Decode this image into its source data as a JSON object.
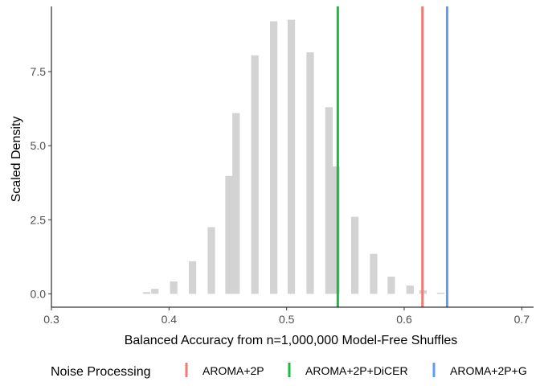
{
  "chart_data": {
    "type": "bar",
    "title": "",
    "xlabel": "Balanced Accuracy from n=1,000,000 Model-Free Shuffles",
    "ylabel": "Scaled Density",
    "xlim": [
      0.3,
      0.71
    ],
    "ylim": [
      -0.45,
      9.7
    ],
    "x_ticks": [
      {
        "value": 0.3,
        "label": "0.3"
      },
      {
        "value": 0.4,
        "label": "0.4"
      },
      {
        "value": 0.5,
        "label": "0.5"
      },
      {
        "value": 0.6,
        "label": "0.6"
      },
      {
        "value": 0.7,
        "label": "0.7"
      }
    ],
    "y_ticks": [
      {
        "value": 0.0,
        "label": "0.0"
      },
      {
        "value": 2.5,
        "label": "2.5"
      },
      {
        "value": 5.0,
        "label": "5.0"
      },
      {
        "value": 7.5,
        "label": "7.5"
      }
    ],
    "bar_color": "#d3d3d3",
    "bar_width": 0.0063,
    "histogram": [
      {
        "x": 0.381,
        "value": 0.06
      },
      {
        "x": 0.388,
        "value": 0.17
      },
      {
        "x": 0.404,
        "value": 0.42
      },
      {
        "x": 0.42,
        "value": 1.1
      },
      {
        "x": 0.436,
        "value": 2.25
      },
      {
        "x": 0.451,
        "value": 3.98
      },
      {
        "x": 0.457,
        "value": 6.1
      },
      {
        "x": 0.473,
        "value": 8.05
      },
      {
        "x": 0.489,
        "value": 9.2
      },
      {
        "x": 0.504,
        "value": 9.25
      },
      {
        "x": 0.52,
        "value": 8.15
      },
      {
        "x": 0.536,
        "value": 6.3
      },
      {
        "x": 0.542,
        "value": 4.3
      },
      {
        "x": 0.558,
        "value": 2.6
      },
      {
        "x": 0.574,
        "value": 1.35
      },
      {
        "x": 0.589,
        "value": 0.58
      },
      {
        "x": 0.605,
        "value": 0.28
      },
      {
        "x": 0.616,
        "value": 0.12
      },
      {
        "x": 0.631,
        "value": 0.04
      }
    ],
    "vlines": [
      {
        "name": "AROMA+2P",
        "x": 0.6155,
        "color": "#f07b74"
      },
      {
        "name": "AROMA+2P+DiCER",
        "x": 0.5435,
        "color": "#1cb844"
      },
      {
        "name": "AROMA+2P+G",
        "x": 0.6365,
        "color": "#629cf0"
      }
    ],
    "legend": {
      "title": "Noise Processing",
      "position": "bottom",
      "entries": [
        {
          "label": "AROMA+2P",
          "color": "#f07b74"
        },
        {
          "label": "AROMA+2P+DiCER",
          "color": "#1cb844"
        },
        {
          "label": "AROMA+2P+G",
          "color": "#629cf0"
        }
      ]
    },
    "grid": false
  }
}
